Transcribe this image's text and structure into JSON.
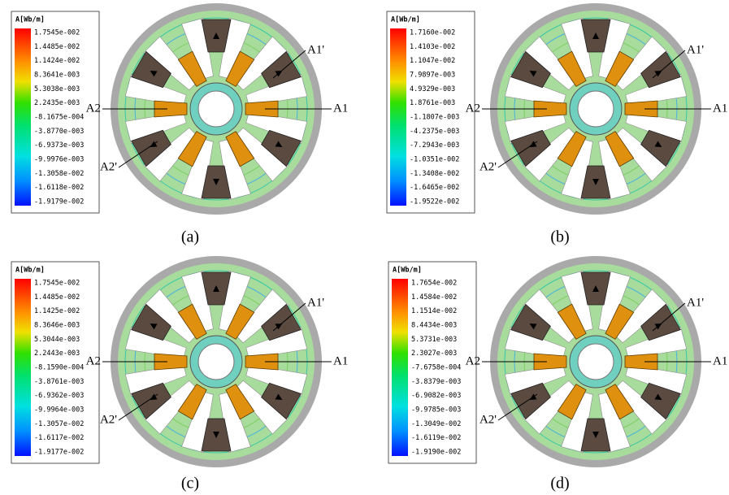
{
  "panels": [
    {
      "legend_title": "A[Wb/m]",
      "legend_labels": [
        "1.7545e-002",
        "1.4485e-002",
        "1.1424e-002",
        "8.3641e-003",
        "5.3038e-003",
        "2.2435e-003",
        "-8.1675e-004",
        "-3.8770e-003",
        "-6.9373e-003",
        "-9.9976e-003",
        "-1.3058e-002",
        "-1.6118e-002",
        "-1.9179e-002"
      ],
      "labels": [
        "A1'",
        "A1",
        "A2",
        "A2'"
      ],
      "caption": "(a)"
    },
    {
      "legend_title": "A[Wb/m]",
      "legend_labels": [
        "1.7160e-002",
        "1.4103e-002",
        "1.1047e-002",
        "7.9897e-003",
        "4.9329e-003",
        "1.8761e-003",
        "-1.1807e-003",
        "-4.2375e-003",
        "-7.2943e-003",
        "-1.0351e-002",
        "-1.3408e-002",
        "-1.6465e-002",
        "-1.9522e-002"
      ],
      "labels": [
        "A1'",
        "A1",
        "A2",
        "A2'"
      ],
      "caption": "(b)"
    },
    {
      "legend_title": "A[Wb/m]",
      "legend_labels": [
        "1.7545e-002",
        "1.4485e-002",
        "1.1425e-002",
        "8.3646e-003",
        "5.3044e-003",
        "2.2443e-003",
        "-8.1590e-004",
        "-3.8761e-003",
        "-6.9362e-003",
        "-9.9964e-003",
        "-1.3057e-002",
        "-1.6117e-002",
        "-1.9177e-002"
      ],
      "labels": [
        "A1'",
        "A1",
        "A2",
        "A2'"
      ],
      "caption": "(c)"
    },
    {
      "legend_title": "A[Wb/m]",
      "legend_labels": [
        "1.7654e-002",
        "1.4584e-002",
        "1.1514e-002",
        "8.4434e-003",
        "5.3731e-003",
        "2.3027e-003",
        "-7.6758e-004",
        "-3.8379e-003",
        "-6.9082e-003",
        "-9.9785e-003",
        "-1.3049e-002",
        "-1.6119e-002",
        "-1.9190e-002"
      ],
      "labels": [
        "A1'",
        "A1",
        "A2",
        "A2'"
      ],
      "caption": "(d)"
    }
  ]
}
